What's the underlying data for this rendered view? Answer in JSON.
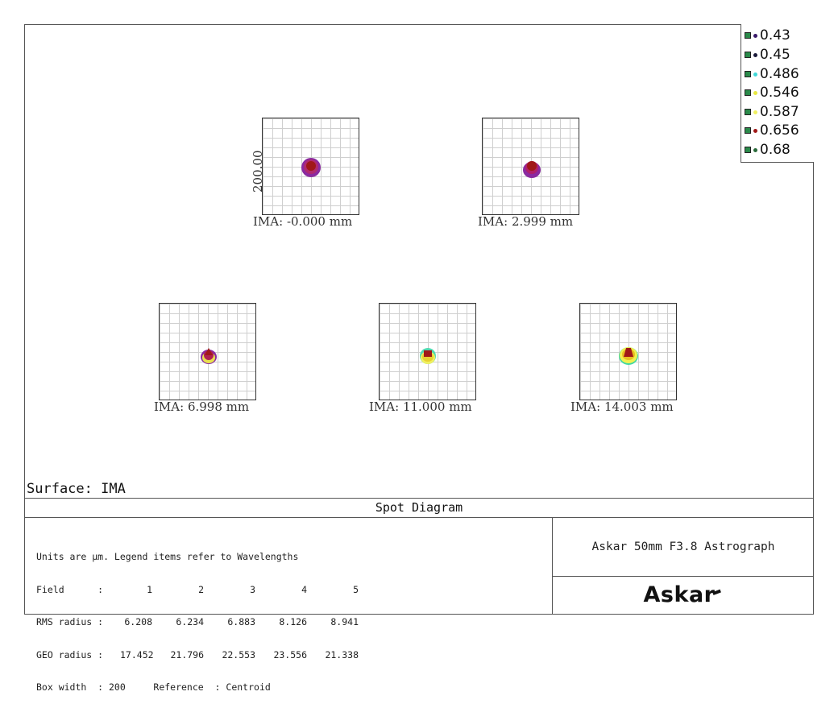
{
  "legend": {
    "items": [
      {
        "label": "0.43",
        "dot_color": "#3a1a6a"
      },
      {
        "label": "0.45",
        "dot_color": "#1a1a3a"
      },
      {
        "label": "0.486",
        "dot_color": "#40d8d8"
      },
      {
        "label": "0.546",
        "dot_color": "#e8e840"
      },
      {
        "label": "0.587",
        "dot_color": "#f0f060"
      },
      {
        "label": "0.656",
        "dot_color": "#a01818"
      },
      {
        "label": "0.68",
        "dot_color": "#2a6a3a"
      }
    ]
  },
  "plots": [
    {
      "ima": "IMA: -0.000 mm",
      "axis": "200.00"
    },
    {
      "ima": "IMA: 2.999 mm"
    },
    {
      "ima": "IMA: 6.998 mm"
    },
    {
      "ima": "IMA: 11.000 mm"
    },
    {
      "ima": "IMA: 14.003 mm"
    }
  ],
  "surface": "Surface: IMA",
  "title": "Spot Diagram",
  "info": {
    "units_line": "Units are µm. Legend items refer to Wavelengths",
    "field_label": "Field      :",
    "fields": [
      "1",
      "2",
      "3",
      "4",
      "5"
    ],
    "rms_label": "RMS radius :",
    "rms": [
      "6.208",
      "6.234",
      "6.883",
      "8.126",
      "8.941"
    ],
    "geo_label": "GEO radius :",
    "geo": [
      "17.452",
      "21.796",
      "22.553",
      "23.556",
      "21.338"
    ],
    "box_line": "Box width  : 200     Reference  : Centroid"
  },
  "product": "Askar 50mm F3.8 Astrograph",
  "brand": "Askar"
}
